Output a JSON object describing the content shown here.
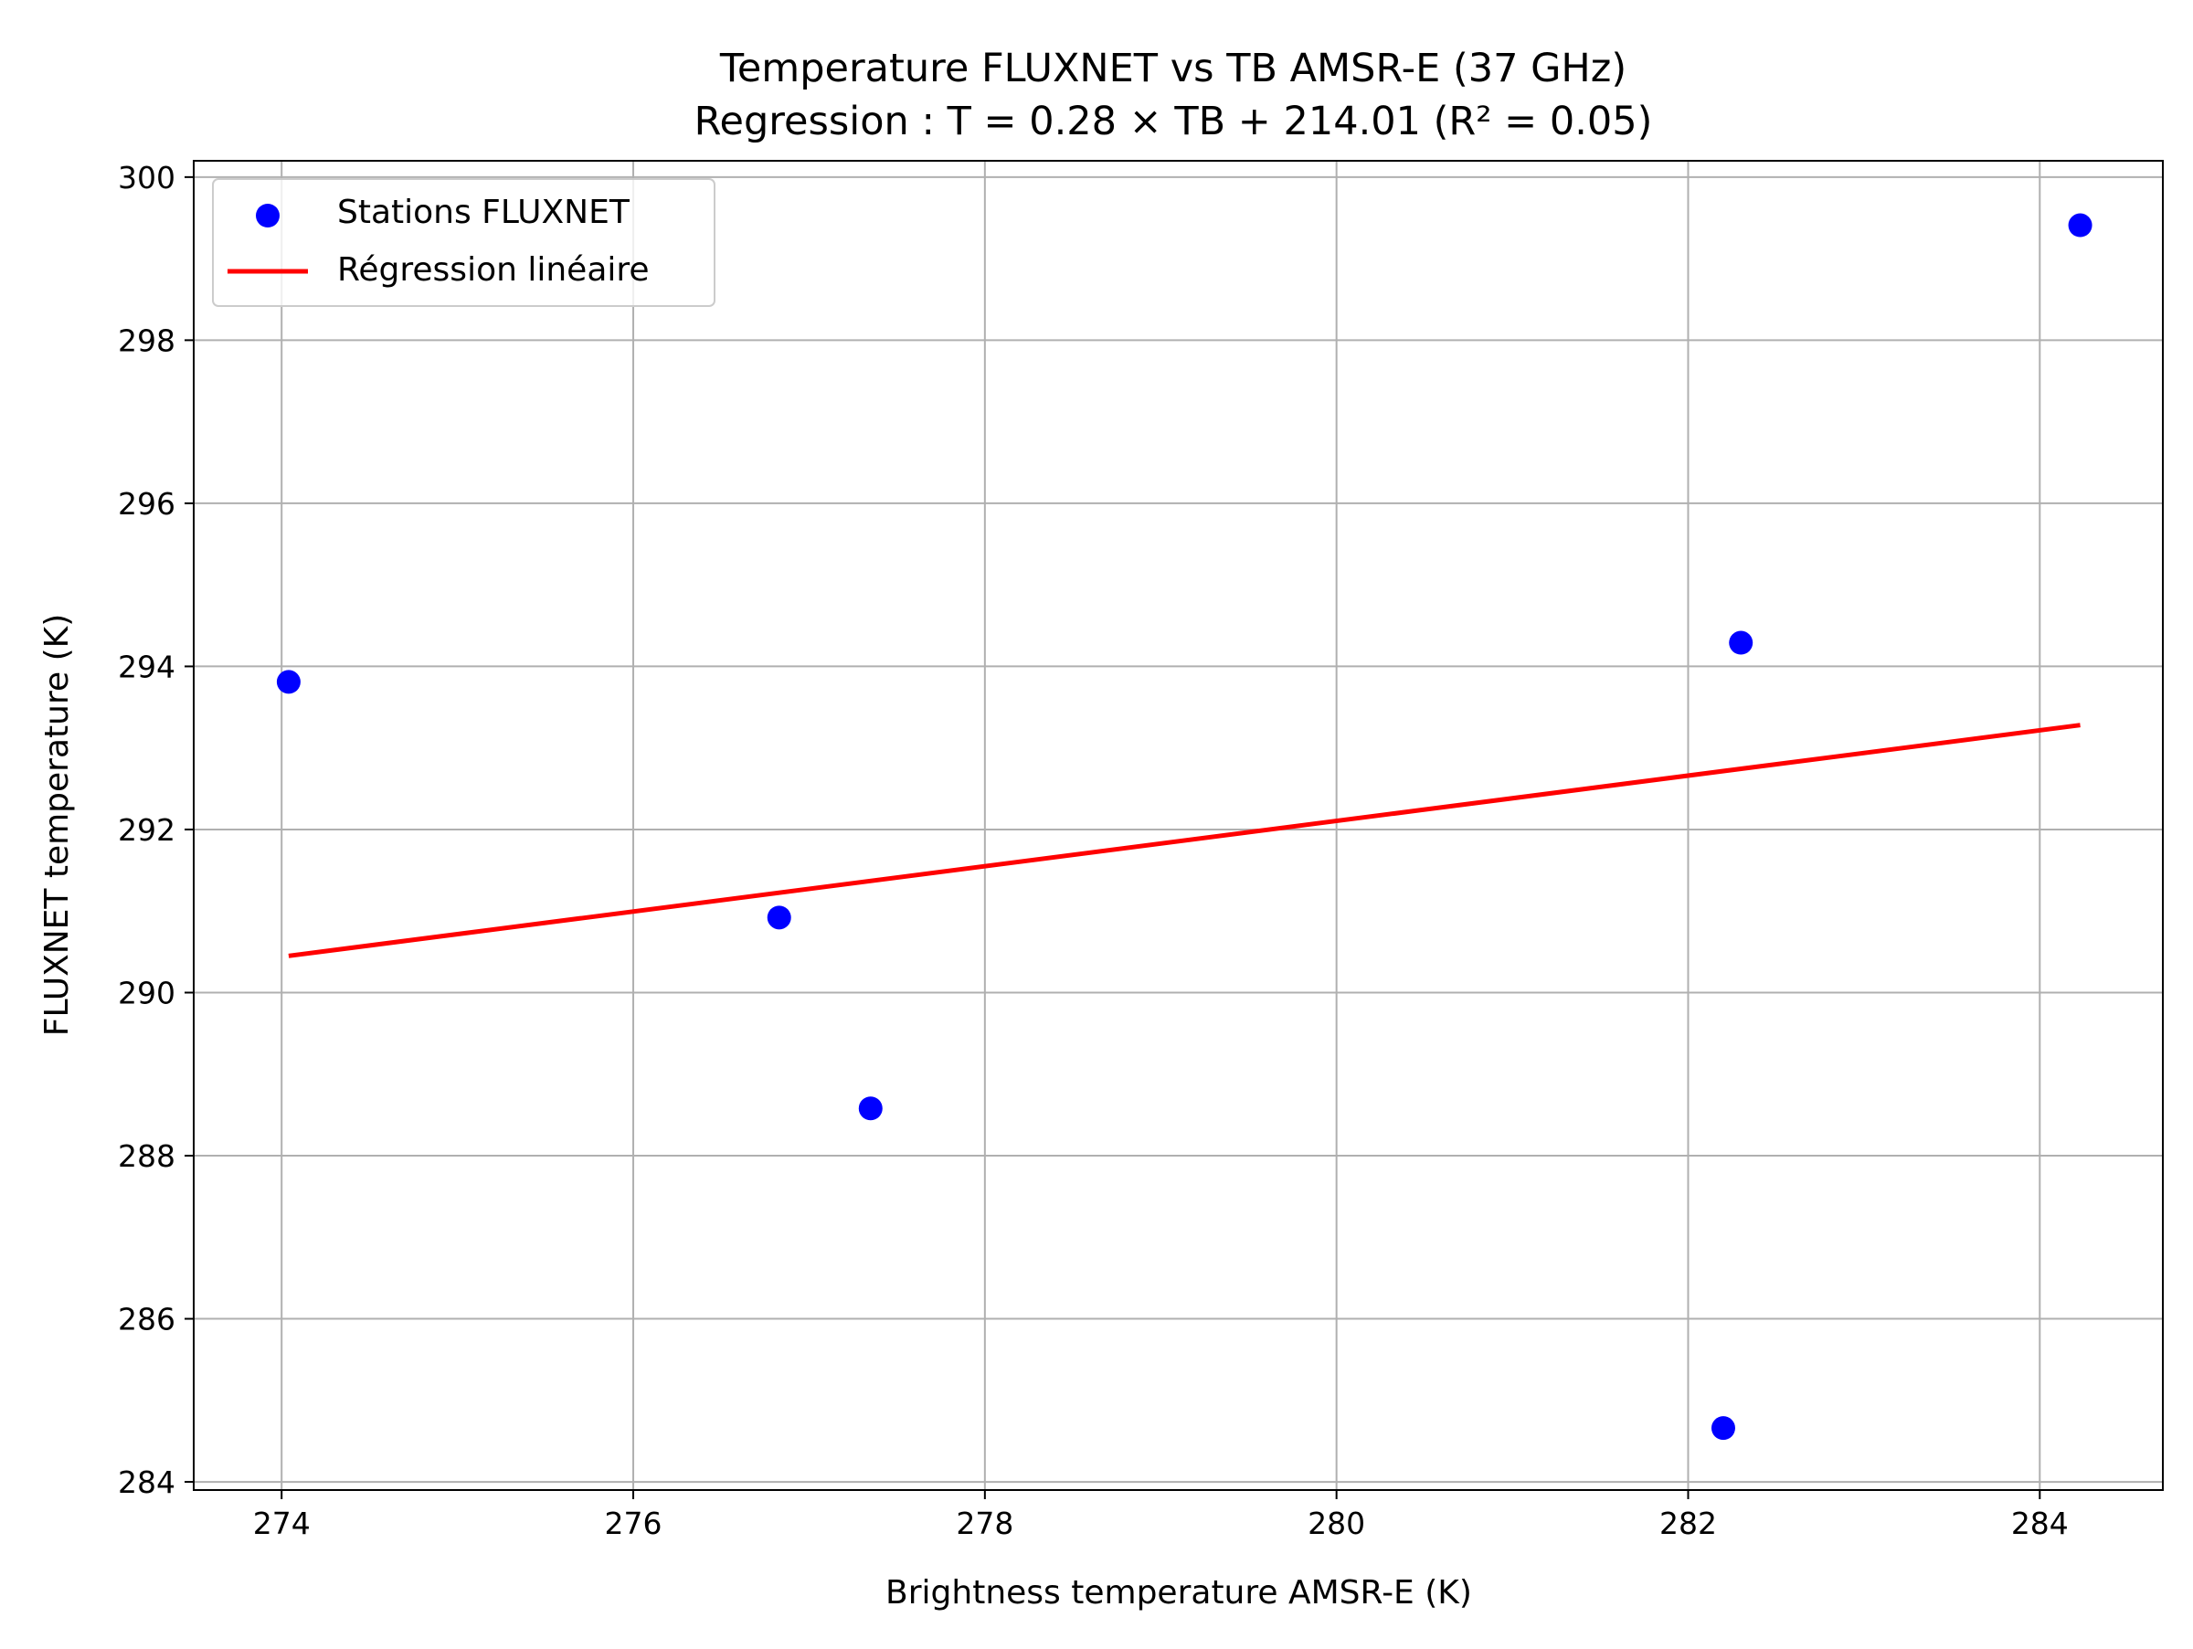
{
  "chart_data": {
    "type": "scatter",
    "title": "Temperature FLUXNET vs TB AMSR-E (37 GHz)",
    "subtitle": "Regression : T = 0.28 × TB + 214.01 (R² = 0.05)",
    "xlabel": "Brightness temperature AMSR-E (K)",
    "ylabel": "FLUXNET temperature (K)",
    "xlim": [
      273.5,
      284.7
    ],
    "ylim": [
      283.9,
      300.2
    ],
    "xticks": [
      "274",
      "276",
      "278",
      "280",
      "282",
      "284"
    ],
    "yticks": [
      "284",
      "286",
      "288",
      "290",
      "292",
      "294",
      "296",
      "298",
      "300"
    ],
    "grid": true,
    "legend_position": "top-left",
    "series": [
      {
        "name": "Stations FLUXNET",
        "kind": "scatter",
        "color": "#0000ff",
        "points": [
          {
            "x": 274.04,
            "y": 293.81
          },
          {
            "x": 276.83,
            "y": 290.92
          },
          {
            "x": 277.35,
            "y": 288.58
          },
          {
            "x": 282.2,
            "y": 284.66
          },
          {
            "x": 282.3,
            "y": 294.29
          },
          {
            "x": 284.23,
            "y": 299.41
          }
        ]
      },
      {
        "name": "Régression linéaire",
        "kind": "line",
        "color": "#ff0000",
        "points": [
          {
            "x": 274.04,
            "y": 290.45
          },
          {
            "x": 284.23,
            "y": 293.28
          }
        ]
      }
    ]
  }
}
